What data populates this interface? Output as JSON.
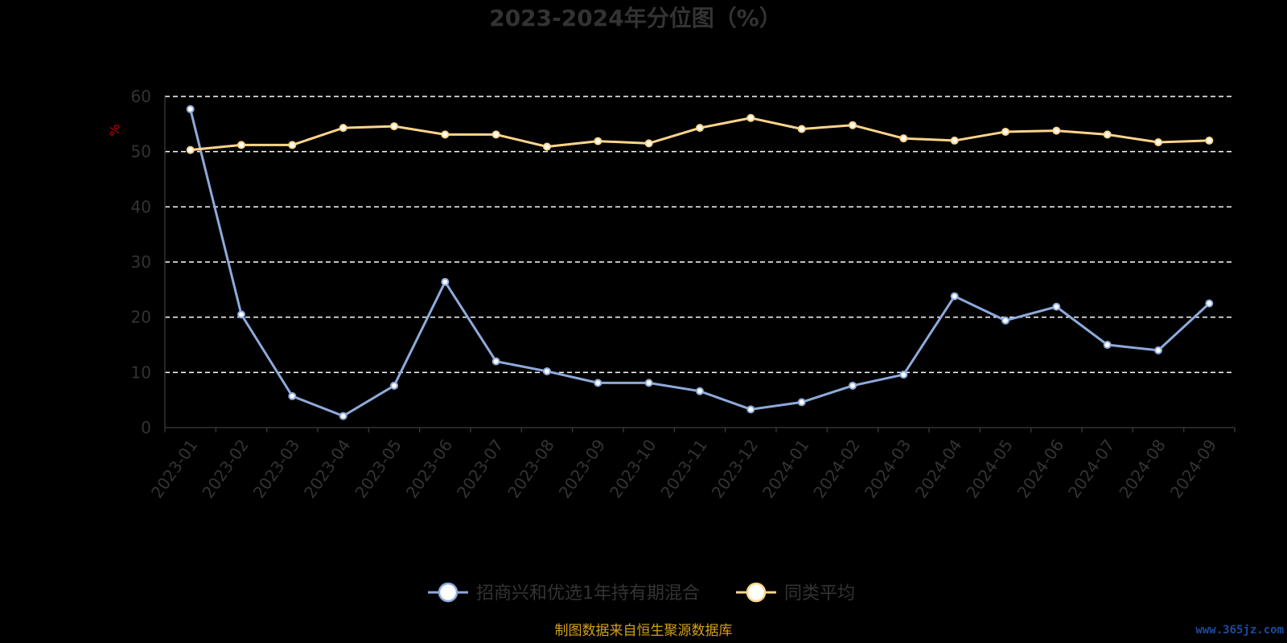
{
  "chart_data": {
    "type": "line",
    "title": "2023-2024年分位图（%）",
    "ylabel": "%",
    "ylim": [
      0,
      60
    ],
    "yticks": [
      0,
      10,
      20,
      30,
      40,
      50,
      60
    ],
    "categories": [
      "2023-01",
      "2023-02",
      "2023-03",
      "2023-04",
      "2023-05",
      "2023-06",
      "2023-07",
      "2023-08",
      "2023-09",
      "2023-10",
      "2023-11",
      "2023-12",
      "2024-01",
      "2024-02",
      "2024-03",
      "2024-04",
      "2024-05",
      "2024-06",
      "2024-07",
      "2024-08",
      "2024-09"
    ],
    "series": [
      {
        "name": "招商兴和优选1年持有期混合",
        "color": "#8eaadb",
        "values": [
          57.7,
          20.5,
          5.7,
          2.1,
          7.6,
          26.4,
          12.0,
          10.2,
          8.1,
          8.1,
          6.6,
          3.3,
          4.6,
          7.6,
          9.6,
          23.8,
          19.4,
          21.9,
          15.0,
          14.0,
          22.5
        ]
      },
      {
        "name": "同类平均",
        "color": "#ffd58a",
        "values": [
          50.3,
          51.2,
          51.2,
          54.3,
          54.6,
          53.1,
          53.1,
          50.9,
          51.9,
          51.5,
          54.3,
          56.1,
          54.1,
          54.8,
          52.4,
          52.0,
          53.6,
          53.8,
          53.1,
          51.7,
          52.0
        ]
      }
    ],
    "grid": true,
    "legend_position": "bottom"
  },
  "footer": {
    "source": "制图数据来自恒生聚源数据库",
    "watermark": "www.365jz.com"
  }
}
